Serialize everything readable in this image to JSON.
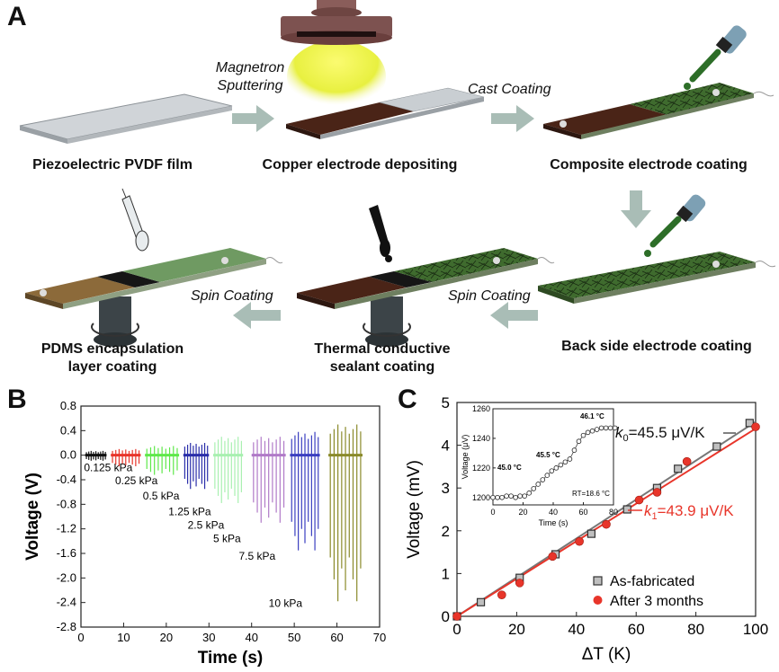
{
  "panels": {
    "a": "A",
    "b": "B",
    "c": "C"
  },
  "schematic": {
    "steps": {
      "s1": "Piezoelectric PVDF film",
      "s2": "Copper electrode depositing",
      "s3": "Composite electrode coating",
      "s4": "Back side electrode coating",
      "s5_l1": "Thermal conductive",
      "s5_l2": "sealant coating",
      "s6_l1": "PDMS encapsulation",
      "s6_l2": "layer coating"
    },
    "processes": {
      "p1_l1": "Magnetron",
      "p1_l2": "Sputtering",
      "p2": "Cast Coating",
      "p3": "Spin Coating",
      "p4": "Spin Coating"
    },
    "colors": {
      "film": "#c9ced2",
      "copper": "#4a2417",
      "composite": "#3f6b2e",
      "sealant": "#161616",
      "pdms": "#8c6a3a",
      "arrow": "#a9bdb6",
      "glow": "#f2f24a"
    }
  },
  "chart_data": [
    {
      "type": "line",
      "panel": "B",
      "xlabel": "Time (s)",
      "ylabel": "Voltage (V)",
      "xlim": [
        0,
        70
      ],
      "ylim": [
        -2.8,
        0.8
      ],
      "xticks": [
        "0",
        "10",
        "20",
        "30",
        "40",
        "50",
        "60",
        "70"
      ],
      "yticks": [
        "0.8",
        "0.4",
        "0.0",
        "-0.4",
        "-0.8",
        "-1.2",
        "-1.6",
        "-2.0",
        "-2.4",
        "-2.8"
      ],
      "series": [
        {
          "name": "0.125 kPa",
          "color": "#111111",
          "x": [
            1,
            6
          ],
          "peak_max": 0.07,
          "peak_min": -0.09
        },
        {
          "name": "0.25 kPa",
          "color": "#e8352a",
          "x": [
            7,
            14
          ],
          "peak_max": 0.1,
          "peak_min": -0.18
        },
        {
          "name": "0.5 kPa",
          "color": "#5fe84a",
          "x": [
            15,
            23
          ],
          "peak_max": 0.15,
          "peak_min": -0.32
        },
        {
          "name": "1.25 kPa",
          "color": "#2a2eaa",
          "x": [
            24,
            30
          ],
          "peak_max": 0.2,
          "peak_min": -0.55
        },
        {
          "name": "2.5 kPa",
          "color": "#a8f0b0",
          "x": [
            31,
            38
          ],
          "peak_max": 0.3,
          "peak_min": -0.78
        },
        {
          "name": "5 kPa",
          "color": "#b07ac8",
          "x": [
            40,
            48
          ],
          "peak_max": 0.3,
          "peak_min": -1.1
        },
        {
          "name": "7.5 kPa",
          "color": "#3b3fc0",
          "x": [
            49,
            56
          ],
          "peak_max": 0.38,
          "peak_min": -1.55
        },
        {
          "name": "10 kPa",
          "color": "#8a8a2a",
          "x": [
            58,
            66
          ],
          "peak_max": 0.5,
          "peak_min": -2.38
        }
      ]
    },
    {
      "type": "scatter",
      "panel": "C",
      "xlabel": "ΔT (K)",
      "ylabel": "Voltage (mV)",
      "xlim": [
        0,
        100
      ],
      "ylim": [
        0,
        5
      ],
      "xticks": [
        "0",
        "20",
        "40",
        "60",
        "80",
        "100"
      ],
      "yticks": [
        "0",
        "1",
        "2",
        "3",
        "4",
        "5"
      ],
      "legend": "bottom-right",
      "series": [
        {
          "name": "As-fabricated",
          "marker": "square",
          "color": "#6d6d6d",
          "x": [
            0,
            8,
            21,
            33,
            45,
            57,
            67,
            74,
            87,
            98
          ],
          "y": [
            0.0,
            0.33,
            0.9,
            1.45,
            1.93,
            2.5,
            3.0,
            3.45,
            3.97,
            4.52
          ]
        },
        {
          "name": "After 3 months",
          "marker": "circle",
          "color": "#e8352a",
          "x": [
            0,
            15,
            21,
            32,
            41,
            50,
            61,
            67,
            77,
            100
          ],
          "y": [
            0.0,
            0.5,
            0.78,
            1.4,
            1.75,
            2.15,
            2.72,
            2.9,
            3.62,
            4.43
          ]
        }
      ],
      "fits": [
        {
          "label_k": "k",
          "label_sub": "0",
          "label_rest": "=45.5 μV/K",
          "color": "#777777",
          "slope": 0.0455
        },
        {
          "label_k": "k",
          "label_sub": "1",
          "label_rest": "=43.9 μV/K",
          "color": "#e8352a",
          "slope": 0.0439
        }
      ],
      "inset": {
        "xlabel": "Time (s)",
        "ylabel": "Voltage (μV)",
        "xlim": [
          0,
          80
        ],
        "ylim": [
          1195,
          1260
        ],
        "xticks": [
          "0",
          "20",
          "40",
          "60",
          "80"
        ],
        "yticks": [
          "1200",
          "1220",
          "1240",
          "1260"
        ],
        "x": [
          0,
          3,
          6,
          9,
          12,
          15,
          18,
          21,
          24,
          27,
          30,
          33,
          36,
          39,
          42,
          45,
          48,
          51,
          54,
          57,
          60,
          63,
          66,
          69,
          72,
          75,
          78,
          81
        ],
        "y": [
          1200,
          1200,
          1200,
          1201,
          1201,
          1200,
          1201,
          1201,
          1203,
          1206,
          1209,
          1212,
          1215,
          1218,
          1220,
          1222,
          1224,
          1226,
          1232,
          1238,
          1242,
          1244,
          1245,
          1246,
          1247,
          1247,
          1247,
          1247
        ],
        "annotations": {
          "a1": "45.0 °C",
          "a2": "45.5 °C",
          "a3": "46.1 °C",
          "a4": "RT=18.6 °C"
        }
      }
    }
  ]
}
